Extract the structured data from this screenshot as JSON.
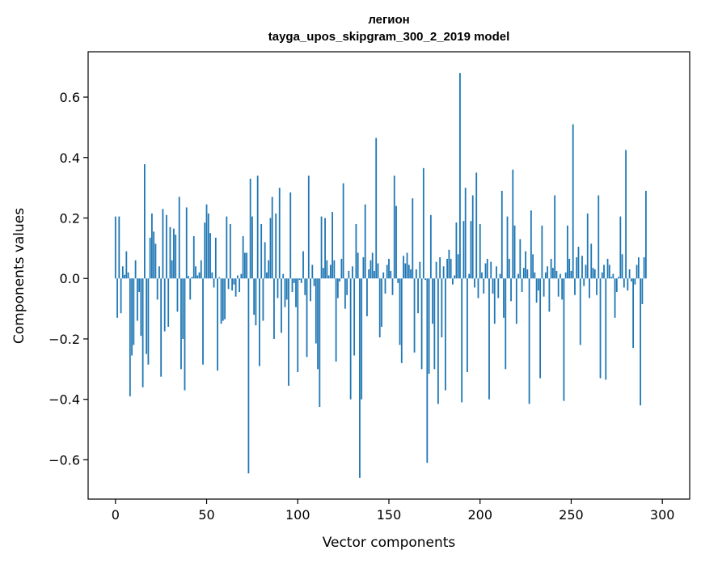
{
  "chart_data": {
    "type": "bar",
    "title": "легион",
    "subtitle": "tayga_upos_skipgram_300_2_2019 model",
    "xlabel": "Vector components",
    "ylabel": "Components values",
    "xlim": [
      -15,
      315
    ],
    "ylim": [
      -0.73,
      0.75
    ],
    "xticks": [
      0,
      50,
      100,
      150,
      200,
      250,
      300
    ],
    "yticks": [
      -0.6,
      -0.4,
      -0.2,
      0.0,
      0.2,
      0.4,
      0.6
    ],
    "xtick_labels": [
      "0",
      "50",
      "100",
      "150",
      "200",
      "250",
      "300"
    ],
    "ytick_labels": [
      "−0.6",
      "−0.4",
      "−0.2",
      "0.0",
      "0.2",
      "0.4",
      "0.6"
    ],
    "bar_color": "#1f77b4",
    "grid": false,
    "values": [
      0.205,
      -0.13,
      0.205,
      -0.115,
      0.04,
      0.012,
      0.09,
      0.02,
      -0.39,
      -0.255,
      -0.22,
      0.06,
      -0.14,
      -0.045,
      -0.19,
      -0.36,
      0.378,
      -0.25,
      -0.285,
      0.135,
      0.215,
      0.155,
      0.115,
      -0.07,
      0.04,
      -0.325,
      0.23,
      -0.175,
      0.21,
      -0.16,
      0.17,
      0.06,
      0.165,
      0.145,
      -0.11,
      0.27,
      -0.3,
      -0.2,
      -0.37,
      0.235,
      0.008,
      -0.07,
      0.005,
      0.14,
      0.04,
      0.01,
      0.02,
      0.06,
      -0.285,
      0.185,
      0.245,
      0.215,
      0.15,
      0.02,
      -0.03,
      0.135,
      -0.305,
      0.004,
      -0.15,
      -0.14,
      -0.135,
      0.205,
      -0.035,
      0.18,
      -0.04,
      -0.02,
      -0.06,
      0.01,
      -0.045,
      0.015,
      0.14,
      0.085,
      0.085,
      -0.645,
      0.33,
      0.205,
      -0.12,
      -0.155,
      0.34,
      -0.29,
      0.18,
      -0.14,
      0.12,
      0.02,
      0.06,
      0.2,
      0.27,
      -0.2,
      0.215,
      -0.065,
      0.3,
      -0.18,
      0.015,
      -0.095,
      -0.07,
      -0.355,
      0.285,
      -0.045,
      -0.015,
      -0.095,
      -0.31,
      -0.005,
      -0.015,
      0.09,
      -0.055,
      -0.26,
      0.34,
      -0.075,
      0.045,
      -0.025,
      -0.215,
      -0.3,
      -0.425,
      0.205,
      0.035,
      0.2,
      0.06,
      0.01,
      0.045,
      0.22,
      0.06,
      -0.275,
      -0.065,
      -0.01,
      0.065,
      0.315,
      -0.1,
      -0.055,
      0.025,
      -0.4,
      0.04,
      -0.255,
      0.18,
      0.085,
      -0.66,
      -0.4,
      0.07,
      0.245,
      -0.125,
      0.03,
      0.06,
      0.085,
      0.025,
      0.465,
      0.05,
      -0.195,
      -0.16,
      0.02,
      -0.05,
      0.045,
      0.065,
      0.025,
      -0.055,
      0.34,
      0.24,
      -0.015,
      -0.22,
      -0.28,
      0.075,
      0.05,
      0.085,
      0.045,
      0.03,
      0.265,
      -0.245,
      0.03,
      -0.115,
      0.055,
      -0.3,
      0.365,
      -0.005,
      -0.61,
      -0.315,
      0.21,
      -0.15,
      -0.3,
      0.055,
      -0.415,
      0.07,
      -0.195,
      0.04,
      -0.37,
      0.065,
      0.095,
      0.065,
      -0.02,
      0.01,
      0.185,
      0.08,
      0.68,
      -0.41,
      0.19,
      0.3,
      -0.31,
      0.015,
      0.19,
      0.275,
      -0.03,
      0.35,
      -0.065,
      0.18,
      0.02,
      -0.05,
      0.05,
      0.065,
      -0.4,
      0.055,
      -0.05,
      -0.15,
      0.04,
      -0.065,
      0.015,
      0.29,
      -0.13,
      -0.3,
      0.205,
      0.065,
      -0.075,
      0.36,
      0.175,
      -0.15,
      0.015,
      0.13,
      -0.045,
      0.035,
      0.09,
      0.03,
      -0.415,
      0.225,
      0.08,
      0.02,
      -0.08,
      -0.04,
      -0.33,
      0.175,
      -0.06,
      0.02,
      0.04,
      -0.11,
      0.065,
      0.035,
      0.275,
      0.025,
      -0.06,
      0.015,
      -0.07,
      -0.405,
      0.02,
      0.175,
      0.065,
      0.025,
      0.51,
      -0.055,
      0.07,
      0.105,
      -0.22,
      0.075,
      -0.025,
      0.045,
      0.215,
      -0.065,
      0.115,
      0.035,
      0.03,
      -0.055,
      0.275,
      -0.33,
      0.02,
      0.045,
      -0.335,
      0.065,
      0.045,
      0.005,
      0.015,
      -0.13,
      -0.045,
      0.005,
      0.205,
      0.08,
      -0.03,
      0.425,
      -0.04,
      0.03,
      -0.01,
      -0.23,
      -0.02,
      0.045,
      0.07,
      -0.42,
      -0.085,
      0.07,
      0.29
    ]
  }
}
